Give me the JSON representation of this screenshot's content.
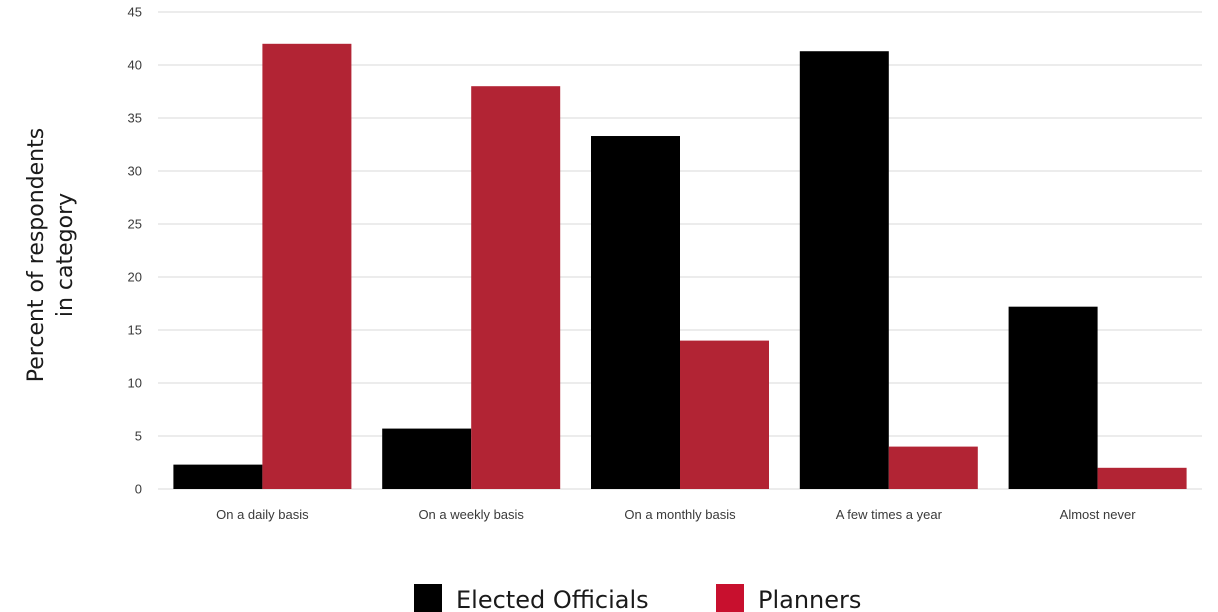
{
  "chart_data": {
    "type": "bar",
    "title": "",
    "xlabel": "",
    "ylabel_lines": [
      "Percent of respondents",
      "in category"
    ],
    "categories": [
      "On a daily basis",
      "On a weekly basis",
      "On a monthly basis",
      "A few times a year",
      "Almost never"
    ],
    "series": [
      {
        "name": "Elected Officials",
        "values": [
          2.3,
          5.7,
          33.3,
          41.3,
          17.2
        ],
        "color": "#000000"
      },
      {
        "name": "Planners",
        "values": [
          42,
          38,
          14,
          4,
          2
        ],
        "color": "#b22434"
      }
    ],
    "legend_swatch_colors": [
      "#000000",
      "#c8102e"
    ],
    "ylim": [
      0,
      45
    ],
    "yticks": [
      0,
      5,
      10,
      15,
      20,
      25,
      30,
      35,
      40,
      45
    ],
    "grid": true,
    "legend_position": "bottom-center"
  }
}
